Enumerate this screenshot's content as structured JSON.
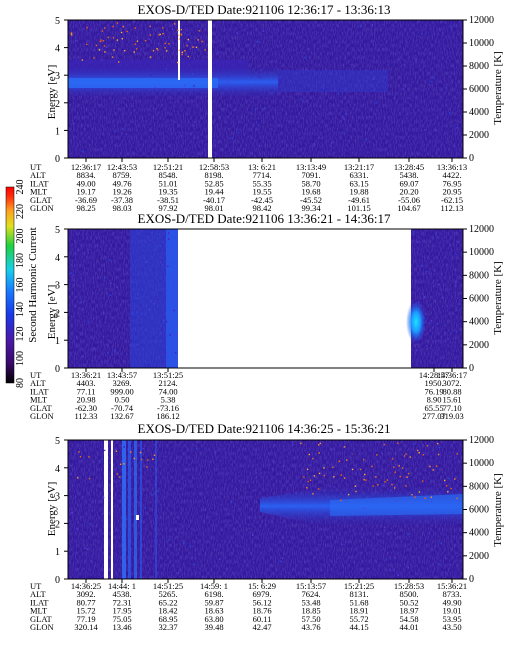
{
  "chart_data": [
    {
      "type": "heatmap",
      "title": "EXOS-D/TED   Date:921106   12:36:17 - 13:36:13",
      "ylabel": "Energy [eV]",
      "y2label": "Temperature [K]",
      "ylim": [
        0,
        5
      ],
      "y2lim": [
        0,
        12000
      ],
      "yticks": [
        "0",
        "1",
        "2",
        "3",
        "4",
        "5"
      ],
      "y2ticks": [
        "0",
        "2000",
        "4000",
        "6000",
        "8000",
        "10000",
        "12000"
      ],
      "row_labels": [
        "UT",
        "ALT",
        "ILAT",
        "MLT",
        "GLAT",
        "GLON"
      ],
      "columns": [
        [
          "12:36:17",
          "8834.",
          "49.00",
          "19.17",
          "-36.69",
          "98.25"
        ],
        [
          "12:43:53",
          "8759.",
          "49.76",
          "19.26",
          "-37.38",
          "98.03"
        ],
        [
          "12:51:21",
          "8548.",
          "51.01",
          "19.35",
          "-38.51",
          "97.92"
        ],
        [
          "12:58:53",
          "8198.",
          "52.85",
          "19.44",
          "-40.17",
          "98.01"
        ],
        [
          "13: 6:21",
          "7714.",
          "55.35",
          "19.55",
          "-42.45",
          "98.42"
        ],
        [
          "13:13:49",
          "7091.",
          "58.70",
          "19.68",
          "-45.52",
          "99.34"
        ],
        [
          "13:21:17",
          "6331.",
          "63.15",
          "19.88",
          "-49.61",
          "101.15"
        ],
        [
          "13:28:45",
          "5438.",
          "69.07",
          "20.20",
          "-55.06",
          "104.67"
        ],
        [
          "13:36:13",
          "4422.",
          "76.95",
          "20.95",
          "-62.15",
          "112.13"
        ]
      ]
    },
    {
      "type": "heatmap",
      "title": "EXOS-D/TED   Date:921106   13:36:21 - 14:36:17",
      "ylabel": "Energy [eV]",
      "y2label": "Temperature [K]",
      "ylim": [
        0,
        5
      ],
      "y2lim": [
        0,
        12000
      ],
      "yticks": [
        "0",
        "1",
        "2",
        "3",
        "4",
        "5"
      ],
      "y2ticks": [
        "0",
        "2000",
        "4000",
        "6000",
        "8000",
        "10000",
        "12000"
      ],
      "colorbar": {
        "label": "Second Harmonic Current",
        "ticks": [
          "80",
          "100",
          "120",
          "140",
          "160",
          "180",
          "200",
          "220",
          "240"
        ]
      },
      "row_labels": [
        "UT",
        "ALT",
        "ILAT",
        "MLT",
        "GLAT",
        "GLON"
      ],
      "columns": [
        [
          "13:36:21",
          "4403.",
          "77.11",
          "20.98",
          "-62.30",
          "112.33"
        ],
        [
          "13:43:57",
          "3269.",
          "999.00",
          "0.50",
          "-70.74",
          "132.67"
        ],
        [
          "13:51:25",
          "2124.",
          "74.00",
          "5.38",
          "-73.16",
          "186.12"
        ],
        [
          "14:28:57",
          "1950.",
          "76.19",
          "8.90",
          "65.55",
          "277.07"
        ],
        [
          "14:36:17",
          "3072.",
          "80.88",
          "15.61",
          "77.10",
          "319.03"
        ]
      ]
    },
    {
      "type": "heatmap",
      "title": "EXOS-D/TED   Date:921106   14:36:25 - 15:36:21",
      "ylabel": "Energy [eV]",
      "y2label": "Temperature [K]",
      "ylim": [
        0,
        5
      ],
      "y2lim": [
        0,
        12000
      ],
      "yticks": [
        "0",
        "1",
        "2",
        "3",
        "4",
        "5"
      ],
      "y2ticks": [
        "0",
        "2000",
        "4000",
        "6000",
        "8000",
        "10000",
        "12000"
      ],
      "row_labels": [
        "UT",
        "ALT",
        "ILAT",
        "MLT",
        "GLAT",
        "GLON"
      ],
      "columns": [
        [
          "14:36:25",
          "3092.",
          "80.77",
          "15.72",
          "77.19",
          "320.14"
        ],
        [
          "14:44: 1",
          "4538.",
          "72.31",
          "17.95",
          "75.05",
          "13.46"
        ],
        [
          "14:51:25",
          "5265.",
          "65.22",
          "18.42",
          "68.95",
          "32.37"
        ],
        [
          "14:59: 1",
          "6198.",
          "59.87",
          "18.63",
          "63.80",
          "39.48"
        ],
        [
          "15: 6:29",
          "6979.",
          "56.12",
          "18.76",
          "60.11",
          "42.47"
        ],
        [
          "15:13:57",
          "7624.",
          "53.48",
          "18.85",
          "57.50",
          "43.76"
        ],
        [
          "15:21:25",
          "8131.",
          "51.68",
          "18.91",
          "55.72",
          "44.15"
        ],
        [
          "15:28:53",
          "8500.",
          "50.52",
          "18.97",
          "54.58",
          "44.01"
        ],
        [
          "15:36:21",
          "8733.",
          "49.90",
          "19.01",
          "53.95",
          "43.50"
        ]
      ]
    }
  ],
  "colors": {
    "background": "#34189e",
    "mid": "#2648e8",
    "gap": "#ffffff",
    "colorbar": [
      "#000000",
      "#3a0a6a",
      "#4a1aa8",
      "#1a3ae8",
      "#1a7aff",
      "#18d0e8",
      "#20d040",
      "#e0e020",
      "#ffa020",
      "#ff3010",
      "#ff0000"
    ]
  }
}
